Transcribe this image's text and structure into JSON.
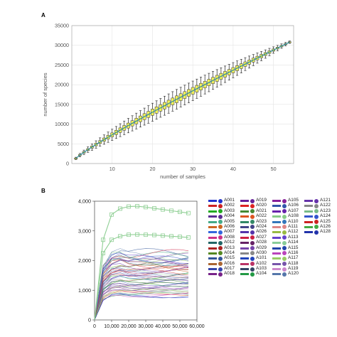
{
  "panelA": {
    "label": "A",
    "chart_data": {
      "type": "box",
      "xlabel": "number of samples",
      "ylabel": "number of species",
      "xlim": [
        0,
        55
      ],
      "ylim": [
        0,
        35000
      ],
      "xticks": [
        10,
        20,
        30,
        40,
        50
      ],
      "yticks": [
        0,
        5000,
        10000,
        15000,
        20000,
        25000,
        30000,
        35000
      ],
      "grid": true,
      "box_color": "#f0f05a",
      "mean_line_color": "#2f8f9a",
      "n_points": 54,
      "median_start": 1300,
      "median_end": 30800
    }
  },
  "panelB": {
    "label": "B",
    "chart_data": {
      "type": "line",
      "xlim": [
        0,
        60000
      ],
      "ylim": [
        0,
        4000
      ],
      "xticks": [
        "0",
        "10,000",
        "20,000",
        "30,000",
        "40,000",
        "50,000",
        "60,000"
      ],
      "yticks": [
        "0",
        "1,000",
        "2,000",
        "3,000",
        "4,000"
      ],
      "x": [
        0,
        5000,
        10000,
        15000,
        20000,
        25000,
        30000,
        35000,
        40000,
        45000,
        50000,
        55000
      ],
      "highlighted_series": [
        {
          "values": [
            0,
            2700,
            3550,
            3750,
            3820,
            3830,
            3800,
            3760,
            3720,
            3680,
            3640,
            3600
          ],
          "color": "#8fcf94"
        },
        {
          "values": [
            0,
            2250,
            2700,
            2820,
            2870,
            2880,
            2870,
            2860,
            2840,
            2820,
            2800,
            2780
          ],
          "color": "#8fcf94"
        }
      ],
      "bundle_range": [
        800,
        2250
      ]
    },
    "legend": [
      {
        "label": "A001",
        "color": "#2233cc"
      },
      {
        "label": "A002",
        "color": "#cc2222"
      },
      {
        "label": "A003",
        "color": "#22aa22"
      },
      {
        "label": "A004",
        "color": "#5a2d91"
      },
      {
        "label": "A005",
        "color": "#44aa88"
      },
      {
        "label": "A006",
        "color": "#cc6622"
      },
      {
        "label": "A007",
        "color": "#3366dd"
      },
      {
        "label": "A008",
        "color": "#cc3388"
      },
      {
        "label": "A012",
        "color": "#226666"
      },
      {
        "label": "A013",
        "color": "#aa2222"
      },
      {
        "label": "A014",
        "color": "#558822"
      },
      {
        "label": "A015",
        "color": "#335599"
      },
      {
        "label": "A016",
        "color": "#aa6633"
      },
      {
        "label": "A017",
        "color": "#3344aa"
      },
      {
        "label": "A018",
        "color": "#772288"
      },
      {
        "label": "A019",
        "color": "#662299"
      },
      {
        "label": "A020",
        "color": "#dd2222"
      },
      {
        "label": "A021",
        "color": "#448833"
      },
      {
        "label": "A022",
        "color": "#dd5522"
      },
      {
        "label": "A023",
        "color": "#338866"
      },
      {
        "label": "A024",
        "color": "#444488"
      },
      {
        "label": "A026",
        "color": "#5533aa"
      },
      {
        "label": "A027",
        "color": "#cc2244"
      },
      {
        "label": "A028",
        "color": "#662266"
      },
      {
        "label": "A029",
        "color": "#7744aa"
      },
      {
        "label": "A030",
        "color": "#888888"
      },
      {
        "label": "A101",
        "color": "#2244bb"
      },
      {
        "label": "A102",
        "color": "#bb3366"
      },
      {
        "label": "A103",
        "color": "#334466"
      },
      {
        "label": "A104",
        "color": "#229944"
      },
      {
        "label": "A105",
        "color": "#882299"
      },
      {
        "label": "A106",
        "color": "#3355aa"
      },
      {
        "label": "A107",
        "color": "#6622aa"
      },
      {
        "label": "A108",
        "color": "#88cc88"
      },
      {
        "label": "A110",
        "color": "#3377bb"
      },
      {
        "label": "A111",
        "color": "#dd8888"
      },
      {
        "label": "A112",
        "color": "#99bb44"
      },
      {
        "label": "A113",
        "color": "#6644cc"
      },
      {
        "label": "A114",
        "color": "#88cc99"
      },
      {
        "label": "A115",
        "color": "#2244aa"
      },
      {
        "label": "A116",
        "color": "#bb44bb"
      },
      {
        "label": "A117",
        "color": "#99cc66"
      },
      {
        "label": "A118",
        "color": "#7755aa"
      },
      {
        "label": "A119",
        "color": "#cc88cc"
      },
      {
        "label": "A120",
        "color": "#5577aa"
      },
      {
        "label": "A121",
        "color": "#6633aa"
      },
      {
        "label": "A122",
        "color": "#888888"
      },
      {
        "label": "A123",
        "color": "#77bb88"
      },
      {
        "label": "A124",
        "color": "#3355cc"
      },
      {
        "label": "A125",
        "color": "#cc2222"
      },
      {
        "label": "A126",
        "color": "#44aa44"
      },
      {
        "label": "A128",
        "color": "#2233aa"
      }
    ]
  }
}
